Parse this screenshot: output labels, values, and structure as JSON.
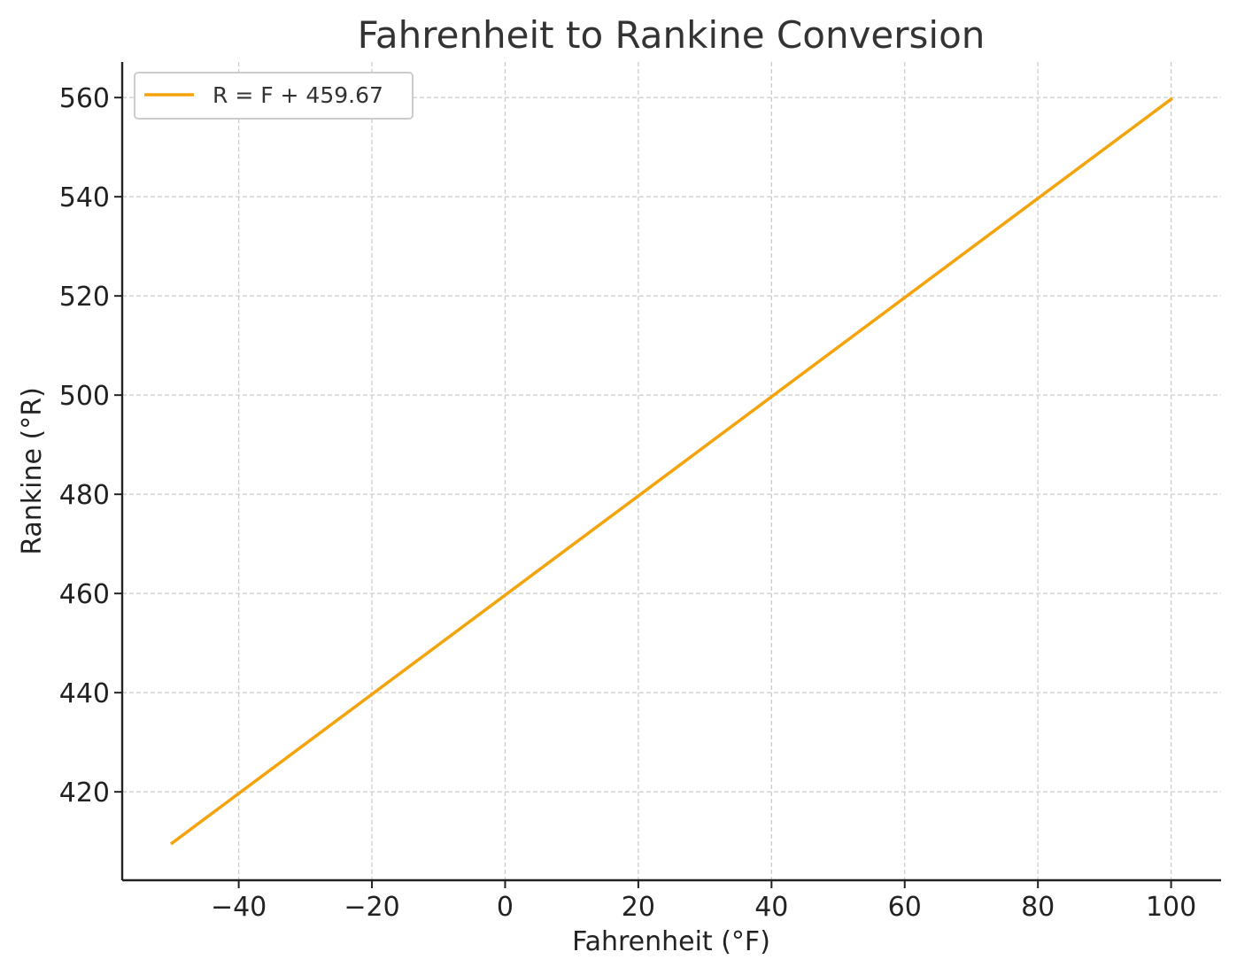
{
  "chart_data": {
    "type": "line",
    "title": "Fahrenheit to Rankine Conversion",
    "xlabel": "Fahrenheit (°F)",
    "ylabel": "Rankine (°R)",
    "xlim": [
      -57.5,
      107.5
    ],
    "ylim": [
      402.17,
      567.17
    ],
    "xticks": [
      -40,
      -20,
      0,
      20,
      40,
      60,
      80,
      100
    ],
    "xtick_labels": [
      "−40",
      "−20",
      "0",
      "20",
      "40",
      "60",
      "80",
      "100"
    ],
    "yticks": [
      420,
      440,
      460,
      480,
      500,
      520,
      540,
      560
    ],
    "ytick_labels": [
      "420",
      "440",
      "460",
      "480",
      "500",
      "520",
      "540",
      "560"
    ],
    "grid": true,
    "legend": {
      "position": "top-left"
    },
    "series": [
      {
        "name": "R = F + 459.67",
        "color": "#f5a30a",
        "x": [
          -50,
          100
        ],
        "y": [
          409.67,
          559.67
        ]
      }
    ]
  }
}
